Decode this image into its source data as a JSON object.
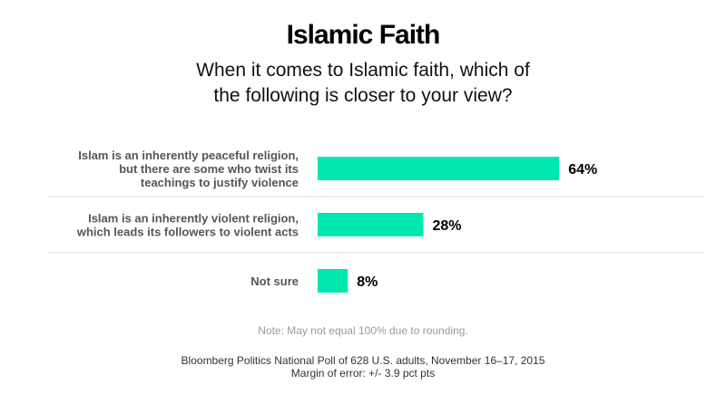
{
  "header": {
    "title": "Islamic Faith",
    "subtitle_lines": [
      "When it comes to Islamic faith, which of",
      "the following is closer to your view?"
    ]
  },
  "chart_data": {
    "type": "bar",
    "orientation": "horizontal",
    "categories": [
      [
        "Islam is an inherently peaceful religion,",
        "but there are some who twist its",
        "teachings to justify violence"
      ],
      [
        "Islam is an inherently violent religion,",
        "which leads its followers to violent acts"
      ],
      [
        "Not sure"
      ]
    ],
    "values": [
      64,
      28,
      8
    ],
    "value_labels": [
      "64%",
      "28%",
      "8%"
    ],
    "xlim": [
      0,
      100
    ],
    "bar_color": "#00e8b0",
    "separator_color": "#dddddd",
    "grid": false,
    "legend": "none"
  },
  "footer": {
    "note": "Note: May not equal 100% due to rounding.",
    "source_lines": [
      "Bloomberg Politics National Poll of 628 U.S. adults, November 16–17, 2015",
      "Margin of error: +/- 3.9 pct pts"
    ]
  }
}
